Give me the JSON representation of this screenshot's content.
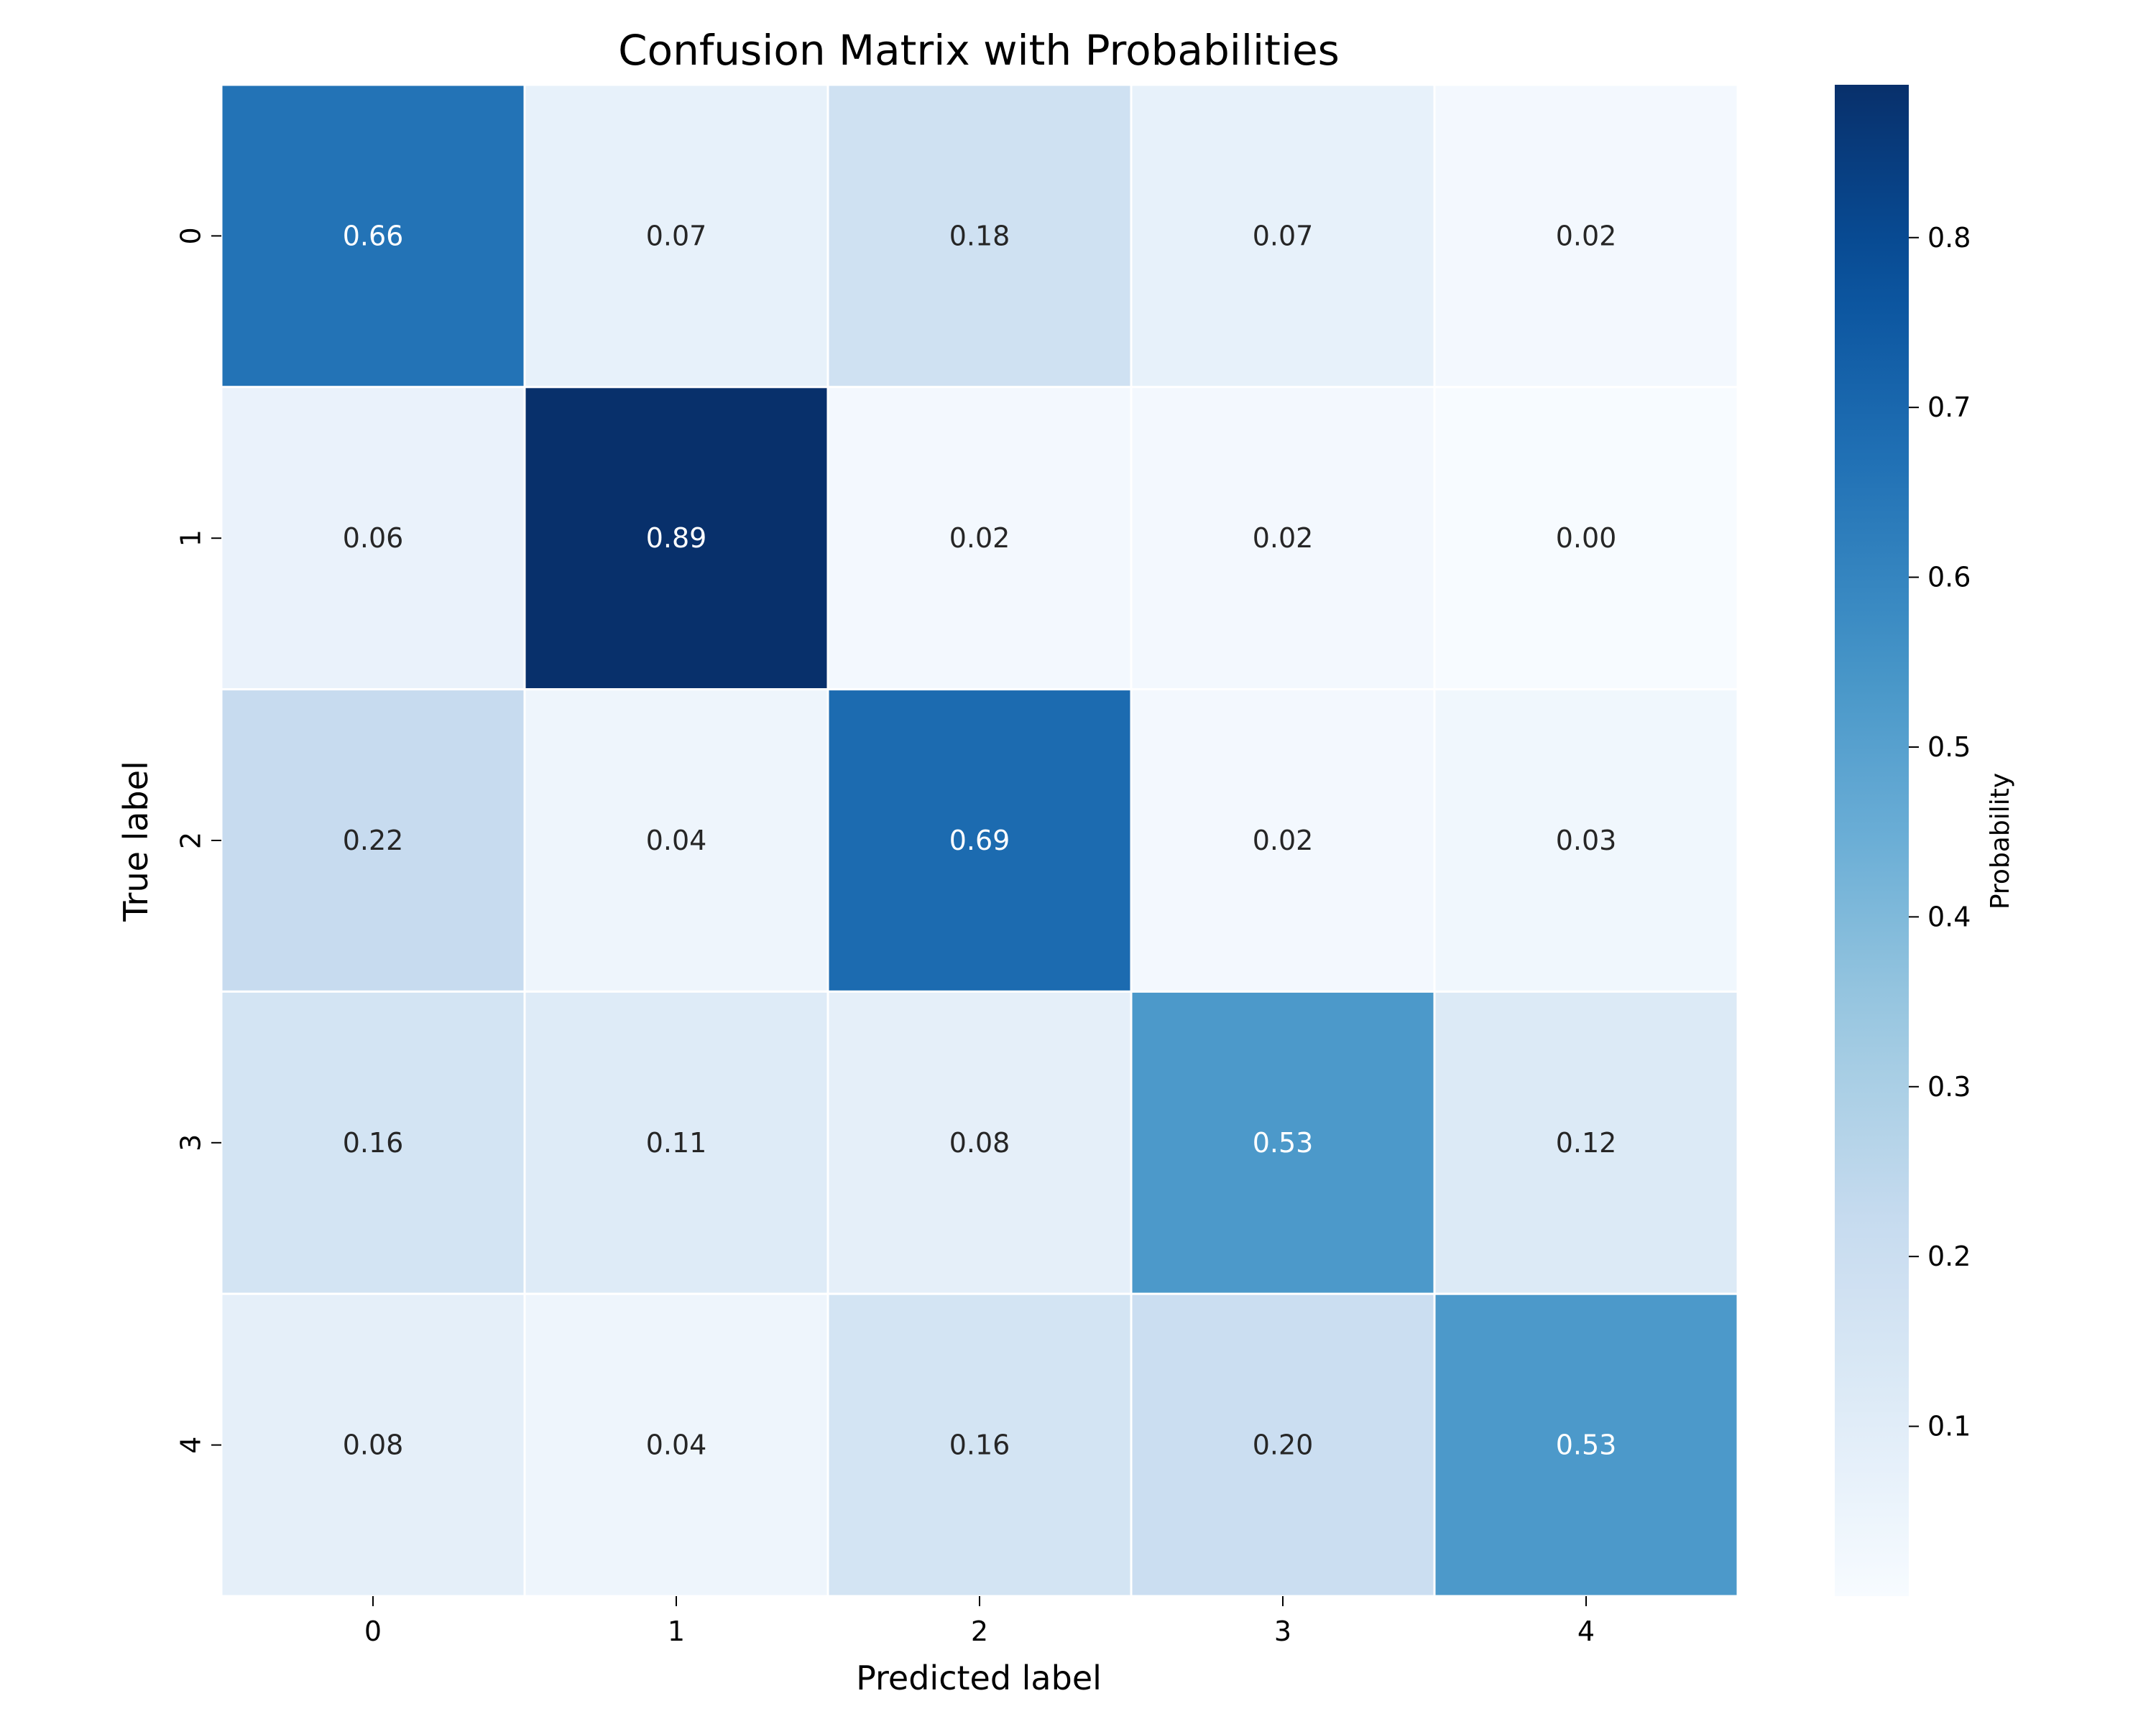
{
  "chart_data": {
    "type": "heatmap",
    "title": "Confusion Matrix with Probabilities",
    "xlabel": "Predicted label",
    "ylabel": "True label",
    "x_categories": [
      "0",
      "1",
      "2",
      "3",
      "4"
    ],
    "y_categories": [
      "0",
      "1",
      "2",
      "3",
      "4"
    ],
    "values": [
      [
        0.66,
        0.07,
        0.18,
        0.07,
        0.02
      ],
      [
        0.06,
        0.89,
        0.02,
        0.02,
        0.0
      ],
      [
        0.22,
        0.04,
        0.69,
        0.02,
        0.03
      ],
      [
        0.16,
        0.11,
        0.08,
        0.53,
        0.12
      ],
      [
        0.08,
        0.04,
        0.16,
        0.2,
        0.53
      ]
    ],
    "cell_labels": [
      [
        "0.66",
        "0.07",
        "0.18",
        "0.07",
        "0.02"
      ],
      [
        "0.06",
        "0.89",
        "0.02",
        "0.02",
        "0.00"
      ],
      [
        "0.22",
        "0.04",
        "0.69",
        "0.02",
        "0.03"
      ],
      [
        "0.16",
        "0.11",
        "0.08",
        "0.53",
        "0.12"
      ],
      [
        "0.08",
        "0.04",
        "0.16",
        "0.20",
        "0.53"
      ]
    ],
    "colormap": "Blues",
    "colorbar": {
      "label": "Probability",
      "range": [
        0.0,
        0.89
      ],
      "ticks": [
        0.1,
        0.2,
        0.3,
        0.4,
        0.5,
        0.6,
        0.7,
        0.8
      ],
      "tick_labels": [
        "0.1",
        "0.2",
        "0.3",
        "0.4",
        "0.5",
        "0.6",
        "0.7",
        "0.8"
      ],
      "placement": "right"
    },
    "grid": false,
    "cell_border_color": "#ffffff",
    "text_color_dark": "#262626",
    "text_color_light": "#ffffff"
  }
}
